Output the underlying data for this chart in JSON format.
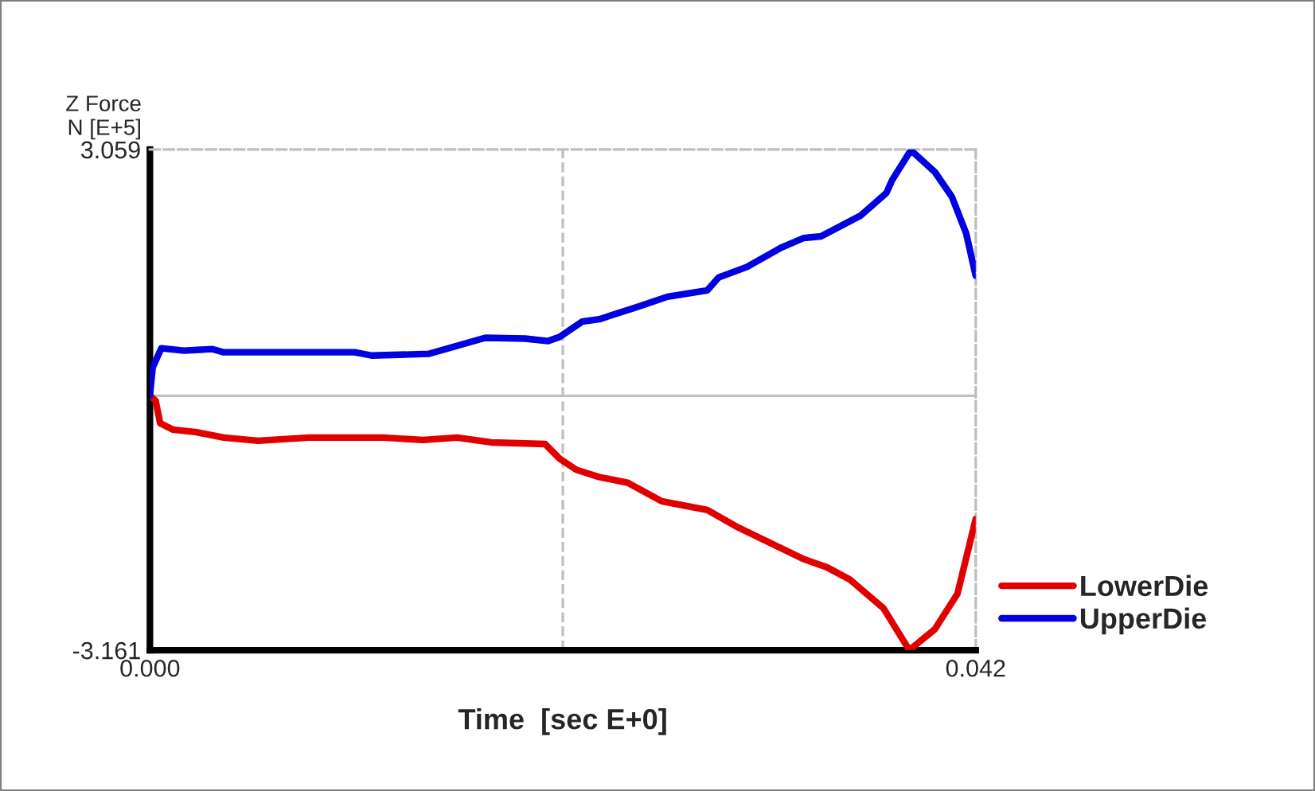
{
  "chart_data": {
    "type": "line",
    "xlabel": "Time  [sec E+0]",
    "ylabel": "Z Force\nN [E+5]",
    "xlim": [
      0,
      0.042
    ],
    "ylim": [
      -3.161,
      3.059
    ],
    "xticks": [
      {
        "value": 0,
        "label": "0.000"
      },
      0.042
    ],
    "yticks": [
      3.059,
      -3.161
    ],
    "grid": false,
    "legend": "bottom right",
    "line_style": "solid",
    "marker": "none",
    "ref_lines": [
      {
        "axis": "x",
        "value": 0.021,
        "color": "#c0c0c0",
        "line_style": "dashed"
      },
      {
        "axis": "y",
        "value": 0,
        "color": "#c0c0c0",
        "line_style": "solid"
      }
    ],
    "series": [
      {
        "name": "LowerDie",
        "color": "#e00000",
        "x": [
          0,
          0.00029,
          0.00052,
          0.00116,
          0.00231,
          0.00376,
          0.0055,
          0.0081,
          0.01186,
          0.01388,
          0.01562,
          0.01736,
          0.0201,
          0.02083,
          0.02169,
          0.02285,
          0.0243,
          0.02603,
          0.02835,
          0.02979,
          0.03326,
          0.03442,
          0.03558,
          0.03731,
          0.03862,
          0.03992,
          0.04107,
          0.042
        ],
        "values": [
          0,
          -0.06,
          -0.34,
          -0.42,
          -0.45,
          -0.52,
          -0.56,
          -0.52,
          -0.52,
          -0.55,
          -0.52,
          -0.58,
          -0.6,
          -0.78,
          -0.92,
          -1.01,
          -1.08,
          -1.31,
          -1.42,
          -1.62,
          -2.03,
          -2.13,
          -2.28,
          -2.64,
          -3.16,
          -2.9,
          -2.46,
          -1.53
        ]
      },
      {
        "name": "UpperDie",
        "color": "#0000e0",
        "x": [
          0,
          0.00014,
          0.00058,
          0.00174,
          0.00318,
          0.00376,
          0.01041,
          0.01128,
          0.01417,
          0.0162,
          0.01706,
          0.01909,
          0.02025,
          0.02083,
          0.02198,
          0.02285,
          0.02488,
          0.02632,
          0.02835,
          0.02893,
          0.03037,
          0.03211,
          0.03326,
          0.03413,
          0.03616,
          0.03746,
          0.03775,
          0.0387,
          0.03992,
          0.04079,
          0.04151,
          0.042
        ],
        "values": [
          0,
          0.35,
          0.59,
          0.56,
          0.58,
          0.54,
          0.54,
          0.5,
          0.52,
          0.66,
          0.72,
          0.71,
          0.68,
          0.73,
          0.92,
          0.95,
          1.11,
          1.23,
          1.31,
          1.47,
          1.6,
          1.84,
          1.96,
          1.98,
          2.24,
          2.52,
          2.68,
          3.05,
          2.78,
          2.47,
          2.02,
          1.49
        ]
      }
    ]
  }
}
